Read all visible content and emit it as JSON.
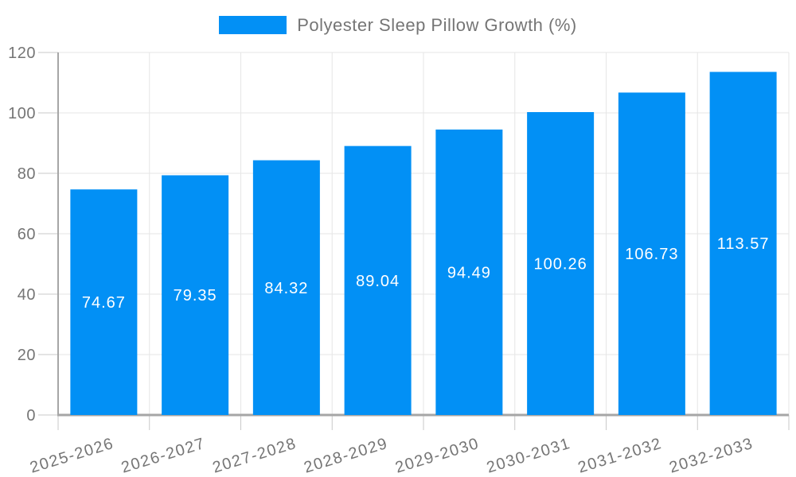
{
  "legend": {
    "label": "Polyester Sleep Pillow Growth (%)"
  },
  "colors": {
    "bar": "#0290f5",
    "axis_line": "#a6a6a6",
    "grid": "#e6e6e6",
    "tick": "#c9c9c9",
    "text": "#757575",
    "bar_label": "#ffffff",
    "background": "#ffffff"
  },
  "chart_data": {
    "type": "bar",
    "title": "Polyester Sleep Pillow Growth (%)",
    "categories": [
      "2025-2026",
      "2026-2027",
      "2027-2028",
      "2028-2029",
      "2029-2030",
      "2030-2031",
      "2031-2032",
      "2032-2033"
    ],
    "values": [
      74.67,
      79.35,
      84.32,
      89.04,
      94.49,
      100.26,
      106.73,
      113.57
    ],
    "bar_labels": [
      "74.67",
      "79.35",
      "84.32",
      "89.04",
      "94.49",
      "100.26",
      "106.73",
      "113.57"
    ],
    "ytick_labels": [
      "0",
      "20",
      "40",
      "60",
      "80",
      "100",
      "120"
    ],
    "xlabel": "",
    "ylabel": "",
    "ylim": [
      0,
      120
    ],
    "ytick_step": 20,
    "grid": true,
    "legend_position": "top",
    "x_label_rotation_deg": -17,
    "bar_label_position": "inside-center"
  }
}
